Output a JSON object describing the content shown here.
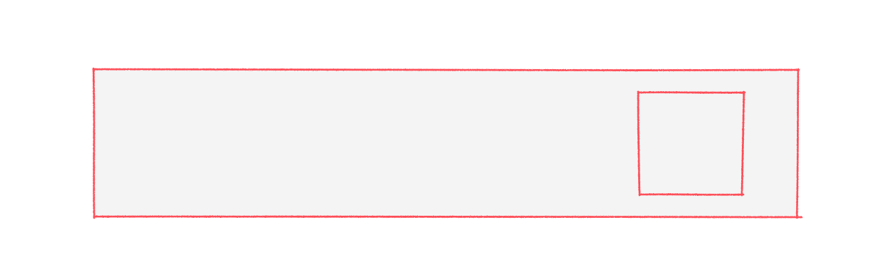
{
  "colors": {
    "background": "#ffffff",
    "stroke": "#ff3b47",
    "fill": "#f4f4f4"
  },
  "shapes": {
    "outer_box": {
      "kind": "rectangle",
      "style": "hand-drawn"
    },
    "inner_box": {
      "kind": "square",
      "style": "hand-drawn"
    }
  }
}
